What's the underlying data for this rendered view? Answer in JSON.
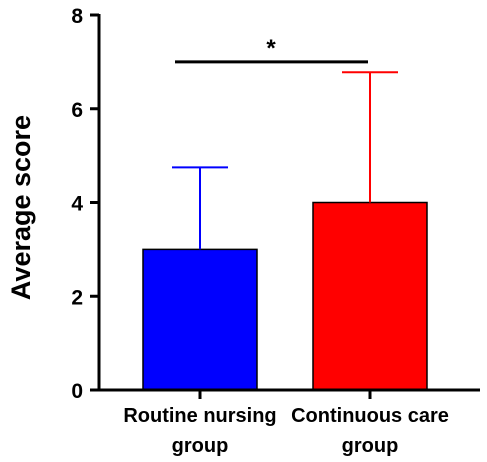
{
  "chart_data": {
    "type": "bar",
    "title": "",
    "xlabel": "",
    "ylabel": "Average score",
    "ylim": [
      0,
      8
    ],
    "yticks": [
      0,
      2,
      4,
      6,
      8
    ],
    "grid": false,
    "categories": [
      [
        "Routine nursing",
        "group"
      ],
      [
        "Continuous care",
        "group"
      ]
    ],
    "values": [
      3.0,
      4.0
    ],
    "error_upper": [
      4.75,
      6.78
    ],
    "colors": [
      "#0000ff",
      "#ff0000"
    ],
    "significance": {
      "between": [
        0,
        1
      ],
      "label": "*",
      "y": 7.0
    }
  }
}
